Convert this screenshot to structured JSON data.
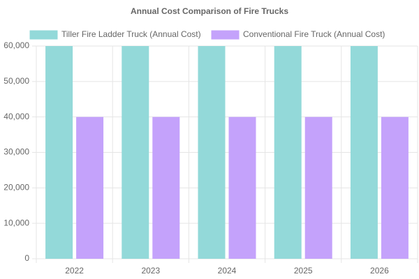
{
  "chart_data": {
    "type": "bar",
    "title": "Annual Cost Comparison of Fire Trucks",
    "categories": [
      "2022",
      "2023",
      "2024",
      "2025",
      "2026"
    ],
    "series": [
      {
        "name": "Tiller Fire Ladder Truck (Annual Cost)",
        "color": "#93d9d9",
        "values": [
          60000,
          60000,
          60000,
          60000,
          60000
        ]
      },
      {
        "name": "Conventional Fire Truck (Annual Cost)",
        "color": "#c4a2fb",
        "values": [
          40000,
          40000,
          40000,
          40000,
          40000
        ]
      }
    ],
    "ylim": [
      0,
      60000
    ],
    "yticks": [
      0,
      {
        "value": 10000,
        "label": "10,000"
      },
      {
        "value": 20000,
        "label": "20,000"
      },
      {
        "value": 30000,
        "label": "30,000"
      },
      {
        "value": 40000,
        "label": "40,000"
      },
      {
        "value": 50000,
        "label": "50,000"
      },
      {
        "value": 60000,
        "label": "60,000"
      }
    ],
    "grid": true,
    "legend": "top"
  }
}
